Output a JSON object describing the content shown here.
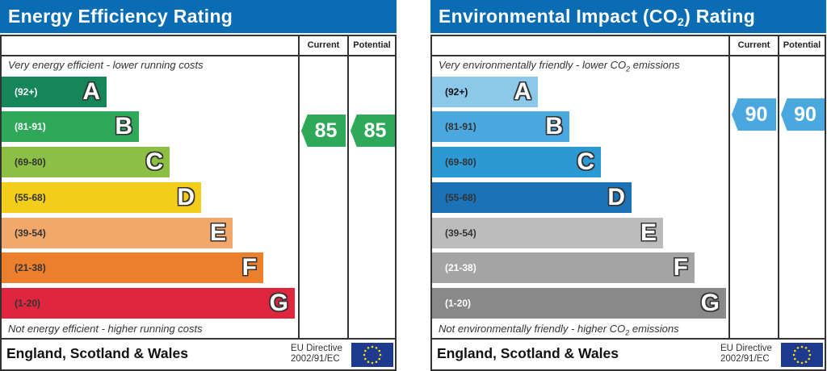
{
  "chart_data": [
    {
      "type": "bar",
      "title": "Energy Efficiency Rating",
      "columns": [
        "Current",
        "Potential"
      ],
      "top_note": "Very energy efficient - lower running costs",
      "bottom_note": "Not energy efficient - higher running costs",
      "bands": [
        {
          "letter": "A",
          "range": "(92+)",
          "color": "#17855a",
          "text_color": "#ffffff"
        },
        {
          "letter": "B",
          "range": "(81-91)",
          "color": "#2ea95a",
          "text_color": "#ffffff"
        },
        {
          "letter": "C",
          "range": "(69-80)",
          "color": "#8cbf43",
          "text_color": "#333333"
        },
        {
          "letter": "D",
          "range": "(55-68)",
          "color": "#f2cd1a",
          "text_color": "#333333"
        },
        {
          "letter": "E",
          "range": "(39-54)",
          "color": "#f2a86b",
          "text_color": "#333333"
        },
        {
          "letter": "F",
          "range": "(21-38)",
          "color": "#ec7f2c",
          "text_color": "#333333"
        },
        {
          "letter": "G",
          "range": "(1-20)",
          "color": "#e0253f",
          "text_color": "#333333"
        }
      ],
      "current": {
        "value": 85,
        "band": "B",
        "color": "#2ea95a"
      },
      "potential": {
        "value": 85,
        "band": "B",
        "color": "#2ea95a"
      },
      "footer": "England, Scotland & Wales",
      "directive": [
        "EU Directive",
        "2002/91/EC"
      ]
    },
    {
      "type": "bar",
      "title": "Environmental Impact (CO2) Rating",
      "title_parts": [
        "Environmental Impact (CO",
        "2",
        ") Rating"
      ],
      "columns": [
        "Current",
        "Potential"
      ],
      "top_note": "Very environmentally friendly - lower CO2 emissions",
      "top_note_parts": [
        "Very environmentally friendly - lower CO",
        "2",
        " emissions"
      ],
      "bottom_note": "Not environmentally friendly - higher CO2 emissions",
      "bottom_note_parts": [
        "Not environmentally friendly - higher CO",
        "2",
        " emissions"
      ],
      "bands": [
        {
          "letter": "A",
          "range": "(92+)",
          "color": "#8cc8ea",
          "text_color": "#111111"
        },
        {
          "letter": "B",
          "range": "(81-91)",
          "color": "#4aa8de",
          "text_color": "#333333"
        },
        {
          "letter": "C",
          "range": "(69-80)",
          "color": "#2b99d3",
          "text_color": "#333333"
        },
        {
          "letter": "D",
          "range": "(55-68)",
          "color": "#1b72b7",
          "text_color": "#333333"
        },
        {
          "letter": "E",
          "range": "(39-54)",
          "color": "#bcbcbc",
          "text_color": "#333333"
        },
        {
          "letter": "F",
          "range": "(21-38)",
          "color": "#a4a4a4",
          "text_color": "#ffffff"
        },
        {
          "letter": "G",
          "range": "(1-20)",
          "color": "#898989",
          "text_color": "#ffffff"
        }
      ],
      "current": {
        "value": 90,
        "band": "A/B",
        "color": "#4aa8de"
      },
      "potential": {
        "value": 90,
        "band": "A/B",
        "color": "#4aa8de"
      },
      "footer": "England, Scotland & Wales",
      "directive": [
        "EU Directive",
        "2002/91/EC"
      ]
    }
  ]
}
